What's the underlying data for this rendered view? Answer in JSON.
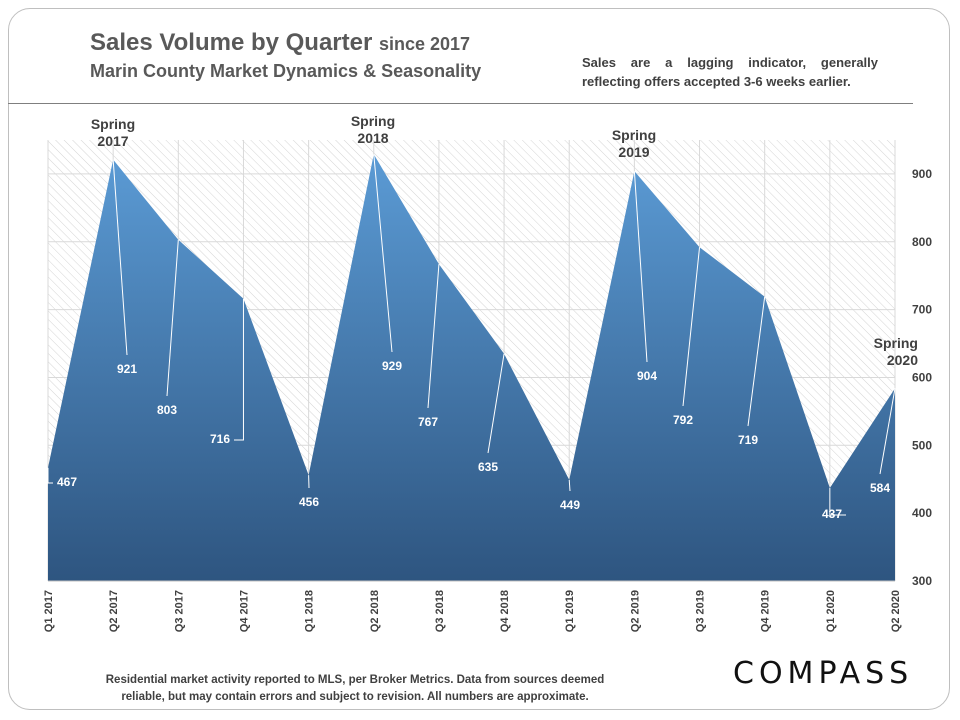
{
  "title": {
    "main": "Sales Volume by Quarter",
    "since": "since 2017",
    "subtitle": "Marin County Market Dynamics & Seasonality"
  },
  "note": "Sales are a lagging indicator, generally reflecting offers accepted 3-6 weeks earlier.",
  "footer": "Residential market activity reported to MLS, per Broker Metrics. Data from sources deemed reliable, but may contain errors and subject to revision. All numbers are approximate.",
  "logo": "COMPASS",
  "colors": {
    "area_top": "#5b9bd5",
    "area_bottom": "#2e5580",
    "grid": "#d9d9d9",
    "text": "#404040"
  },
  "chart_data": {
    "type": "area",
    "title": "Sales Volume by Quarter since 2017",
    "subtitle": "Marin County Market Dynamics & Seasonality",
    "categories": [
      "Q1 2017",
      "Q2 2017",
      "Q3 2017",
      "Q4 2017",
      "Q1 2018",
      "Q2 2018",
      "Q3 2018",
      "Q4 2018",
      "Q1 2019",
      "Q2 2019",
      "Q3 2019",
      "Q4 2019",
      "Q1 2020",
      "Q2 2020"
    ],
    "values": [
      467,
      921,
      803,
      716,
      456,
      929,
      767,
      635,
      449,
      904,
      792,
      719,
      437,
      584
    ],
    "ylim": [
      300,
      950
    ],
    "yticks": [
      300,
      400,
      500,
      600,
      700,
      800,
      900
    ],
    "y_axis_side": "right",
    "grid": true,
    "annotations": [
      {
        "index": 1,
        "lines": [
          "Spring",
          "2017"
        ]
      },
      {
        "index": 5,
        "lines": [
          "Spring",
          "2018"
        ]
      },
      {
        "index": 9,
        "lines": [
          "Spring",
          "2019"
        ]
      },
      {
        "index": 13,
        "lines": [
          "Spring",
          "2020"
        ]
      }
    ]
  }
}
